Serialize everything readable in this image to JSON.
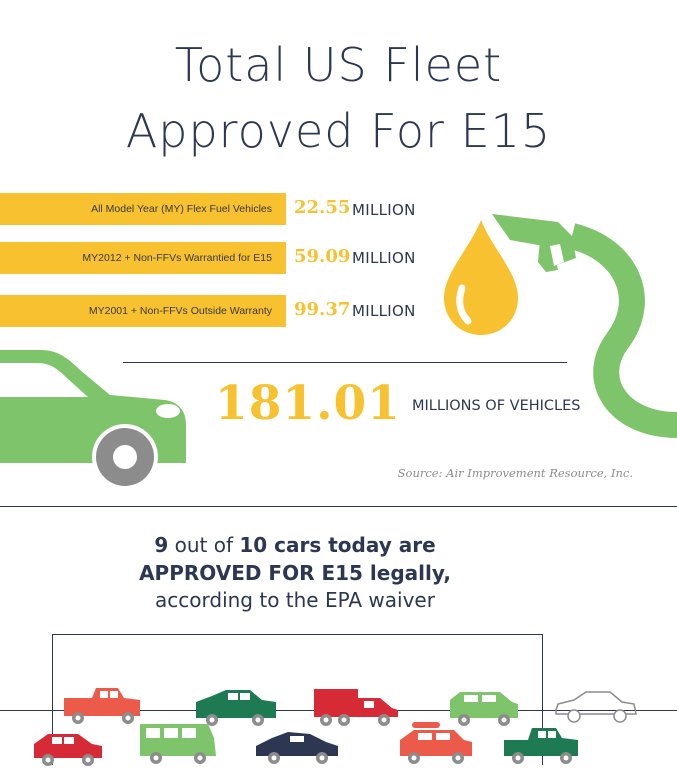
{
  "title": {
    "line1": "Total US Fleet",
    "line2": "Approved For E15"
  },
  "bars": [
    {
      "label": "All Model Year (MY) Flex Fuel Vehicles",
      "value": "22.55",
      "unit": "MILLION"
    },
    {
      "label": "MY2012 + Non-FFVs Warrantied for E15",
      "value": "59.09",
      "unit": "MILLION"
    },
    {
      "label": "MY2001 + Non-FFVs Outside Warranty",
      "value": "99.37",
      "unit": "MILLION"
    }
  ],
  "total": {
    "value": "181.01",
    "unit": "MILLIONS OF VEHICLES"
  },
  "source": "Source: Air Improvement Resource, Inc.",
  "headline": {
    "n1": "9",
    "t1": " out of ",
    "n2": "10 cars today are",
    "line2": "APPROVED FOR E15 legally,",
    "line3": "according to the EPA waiver"
  },
  "colors": {
    "accent": "#f7c12f",
    "green": "#7dc46b",
    "navy": "#2d3752",
    "gray": "#8c8c8c"
  },
  "icons": [
    "fuel-drop-icon",
    "fuel-nozzle-icon",
    "car-icon",
    "vehicle-icons"
  ]
}
